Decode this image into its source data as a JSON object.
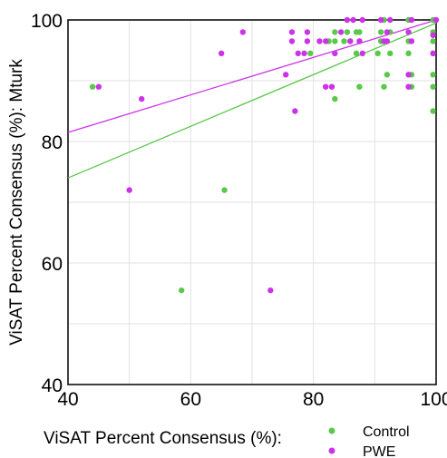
{
  "chart_data": {
    "type": "scatter",
    "xlabel": "ViSAT Percent Consensus (%):",
    "ylabel": "ViSAT Percent Consensus (%): Mturk",
    "xlim": [
      40,
      100
    ],
    "ylim": [
      40,
      100
    ],
    "xticks": [
      40,
      60,
      80,
      100
    ],
    "yticks": [
      40,
      60,
      80,
      100
    ],
    "grid": true,
    "legend_position": "bottom-right, outside plot",
    "series": [
      {
        "name": "Control",
        "color": "#5ac84a",
        "points": [
          [
            44,
            89
          ],
          [
            58.5,
            55.5
          ],
          [
            65.5,
            72
          ],
          [
            79.5,
            94.5
          ],
          [
            82.5,
            96.5
          ],
          [
            83.5,
            87
          ],
          [
            83.5,
            94.5
          ],
          [
            83.5,
            96.5
          ],
          [
            83.5,
            98
          ],
          [
            85,
            96.5
          ],
          [
            85.5,
            98
          ],
          [
            86,
            96.5
          ],
          [
            87,
            94.5
          ],
          [
            87,
            98
          ],
          [
            87.5,
            89
          ],
          [
            87.5,
            96.5
          ],
          [
            87.5,
            98
          ],
          [
            90.5,
            94.5
          ],
          [
            91,
            96.5
          ],
          [
            91,
            98
          ],
          [
            91.5,
            89
          ],
          [
            91.5,
            100
          ],
          [
            92,
            91
          ],
          [
            92.5,
            94.5
          ],
          [
            92.5,
            98
          ],
          [
            95.5,
            94.5
          ],
          [
            95.5,
            96.5
          ],
          [
            95.5,
            100
          ],
          [
            96,
            89
          ],
          [
            96,
            91
          ],
          [
            99.5,
            85
          ],
          [
            99.5,
            89
          ],
          [
            99.5,
            91
          ],
          [
            99.5,
            94.5
          ],
          [
            99.5,
            96.5
          ],
          [
            99.5,
            98
          ],
          [
            99.5,
            100
          ]
        ],
        "trendline": [
          [
            40,
            74
          ],
          [
            100,
            99.5
          ]
        ]
      },
      {
        "name": "PWE",
        "color": "#cc33e8",
        "points": [
          [
            45,
            89
          ],
          [
            50,
            72
          ],
          [
            52,
            87
          ],
          [
            65,
            94.5
          ],
          [
            68.5,
            98
          ],
          [
            73,
            55.5
          ],
          [
            75.5,
            91
          ],
          [
            76.5,
            96.5
          ],
          [
            76.5,
            98
          ],
          [
            77,
            85
          ],
          [
            77.5,
            94.5
          ],
          [
            78.5,
            94.5
          ],
          [
            79,
            96.5
          ],
          [
            79,
            98
          ],
          [
            81,
            96.5
          ],
          [
            82,
            89
          ],
          [
            82,
            96.5
          ],
          [
            83,
            89
          ],
          [
            83.5,
            94.5
          ],
          [
            84.5,
            98
          ],
          [
            85.5,
            100
          ],
          [
            86,
            96.5
          ],
          [
            86.5,
            100
          ],
          [
            87.5,
            96.5
          ],
          [
            88,
            94.5
          ],
          [
            88,
            100
          ],
          [
            91,
            100
          ],
          [
            91.5,
            96.5
          ],
          [
            92,
            96.5
          ],
          [
            92,
            98
          ],
          [
            92.5,
            100
          ],
          [
            95.5,
            89
          ],
          [
            95.5,
            91
          ],
          [
            95.5,
            98
          ],
          [
            96,
            96.5
          ],
          [
            96,
            100
          ],
          [
            99.5,
            94.5
          ],
          [
            99.5,
            97.5
          ],
          [
            100,
            100
          ]
        ],
        "trendline": [
          [
            40,
            81.5
          ],
          [
            100,
            100
          ]
        ]
      }
    ]
  }
}
